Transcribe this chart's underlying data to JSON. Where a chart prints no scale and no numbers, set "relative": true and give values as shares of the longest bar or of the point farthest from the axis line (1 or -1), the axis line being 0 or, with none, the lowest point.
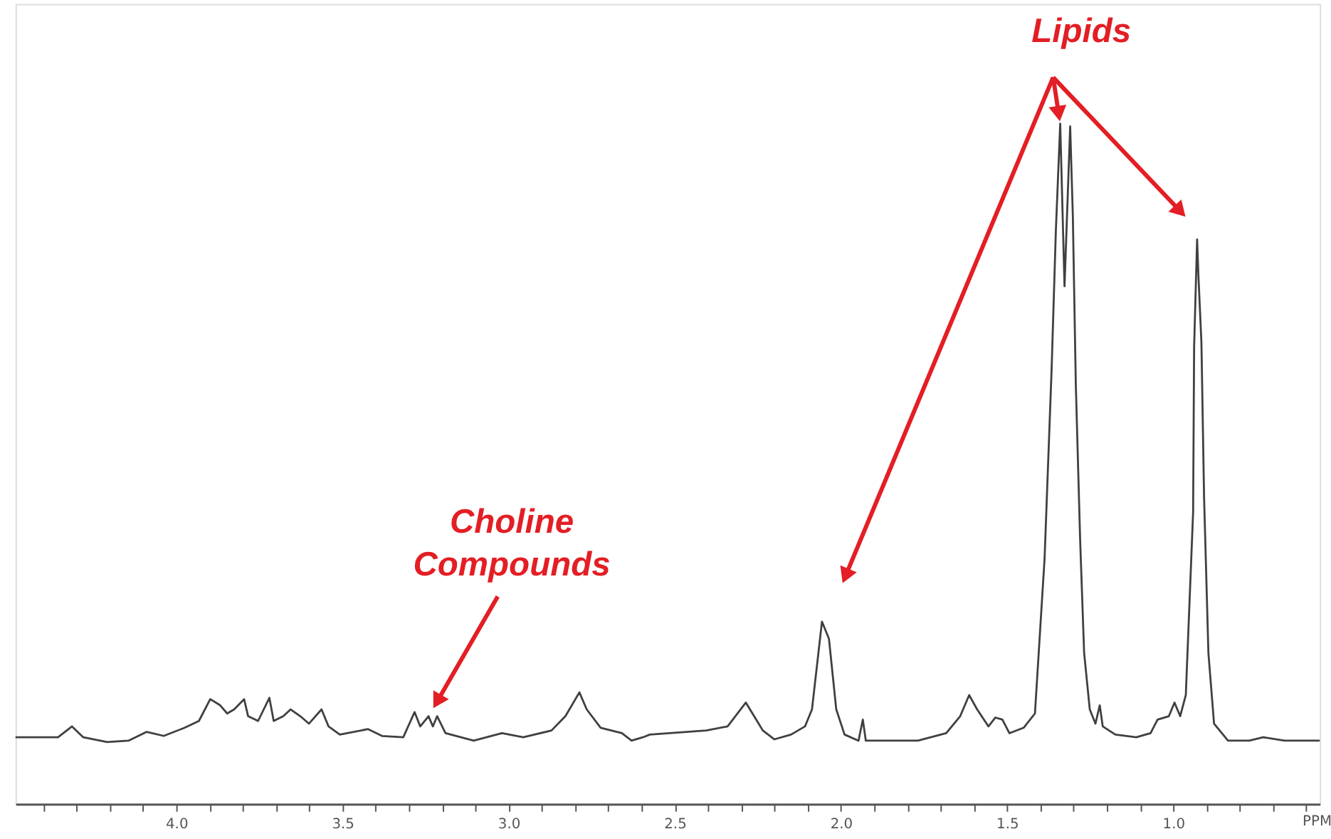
{
  "chart_data": {
    "type": "line",
    "relative": true,
    "xlabel": "PPM",
    "xlim": [
      4.484,
      0.559
    ],
    "xticks": [
      {
        "value": 4.4,
        "label": null
      },
      {
        "value": 4.3,
        "label": null
      },
      {
        "value": 4.2,
        "label": null
      },
      {
        "value": 4.1,
        "label": null
      },
      {
        "value": 4.0,
        "label": "4.0"
      },
      {
        "value": 3.9,
        "label": null
      },
      {
        "value": 3.8,
        "label": null
      },
      {
        "value": 3.7,
        "label": null
      },
      {
        "value": 3.6,
        "label": null
      },
      {
        "value": 3.5,
        "label": "3.5"
      },
      {
        "value": 3.4,
        "label": null
      },
      {
        "value": 3.3,
        "label": null
      },
      {
        "value": 3.2,
        "label": null
      },
      {
        "value": 3.1,
        "label": null
      },
      {
        "value": 3.0,
        "label": "3.0"
      },
      {
        "value": 2.9,
        "label": null
      },
      {
        "value": 2.8,
        "label": null
      },
      {
        "value": 2.7,
        "label": null
      },
      {
        "value": 2.6,
        "label": null
      },
      {
        "value": 2.5,
        "label": "2.5"
      },
      {
        "value": 2.4,
        "label": null
      },
      {
        "value": 2.3,
        "label": null
      },
      {
        "value": 2.2,
        "label": null
      },
      {
        "value": 2.1,
        "label": null
      },
      {
        "value": 2.0,
        "label": "2.0"
      },
      {
        "value": 1.9,
        "label": null
      },
      {
        "value": 1.8,
        "label": null
      },
      {
        "value": 1.7,
        "label": null
      },
      {
        "value": 1.6,
        "label": null
      },
      {
        "value": 1.5,
        "label": "1.5"
      },
      {
        "value": 1.4,
        "label": null
      },
      {
        "value": 1.3,
        "label": null
      },
      {
        "value": 1.2,
        "label": null
      },
      {
        "value": 1.1,
        "label": null
      },
      {
        "value": 1.0,
        "label": "1.0"
      },
      {
        "value": 0.9,
        "label": null
      },
      {
        "value": 0.8,
        "label": null
      },
      {
        "value": 0.7,
        "label": null
      },
      {
        "value": 0.6,
        "label": null
      }
    ],
    "grid": false,
    "marker": "none",
    "line_style": "solid",
    "series": [
      {
        "color": "#404040",
        "x": [
          4.484,
          4.356,
          4.314,
          4.28,
          4.208,
          4.144,
          4.089,
          4.038,
          3.975,
          3.932,
          3.898,
          3.868,
          3.847,
          3.826,
          3.796,
          3.784,
          3.754,
          3.72,
          3.707,
          3.678,
          3.656,
          3.627,
          3.601,
          3.563,
          3.542,
          3.508,
          3.423,
          3.381,
          3.317,
          3.283,
          3.266,
          3.241,
          3.228,
          3.215,
          3.19,
          3.105,
          3.02,
          2.956,
          2.871,
          2.829,
          2.787,
          2.765,
          2.723,
          2.659,
          2.63,
          2.596,
          2.575,
          2.405,
          2.341,
          2.286,
          2.235,
          2.2,
          2.15,
          2.108,
          2.087,
          2.057,
          2.036,
          2.014,
          1.989,
          1.947,
          1.934,
          1.925,
          1.768,
          1.683,
          1.641,
          1.614,
          1.59,
          1.556,
          1.535,
          1.514,
          1.493,
          1.45,
          1.416,
          1.387,
          1.366,
          1.353,
          1.34,
          1.327,
          1.31,
          1.302,
          1.293,
          1.28,
          1.268,
          1.251,
          1.234,
          1.221,
          1.212,
          1.174,
          1.111,
          1.068,
          1.047,
          1.013,
          0.996,
          0.979,
          0.962,
          0.94,
          0.937,
          0.928,
          0.924,
          0.915,
          0.907,
          0.894,
          0.877,
          0.835,
          0.771,
          0.729,
          0.665,
          0.559
        ],
        "values": [
          0.098,
          0.098,
          0.114,
          0.098,
          0.091,
          0.093,
          0.106,
          0.1,
          0.112,
          0.122,
          0.154,
          0.145,
          0.133,
          0.139,
          0.154,
          0.129,
          0.122,
          0.156,
          0.122,
          0.129,
          0.139,
          0.129,
          0.118,
          0.139,
          0.114,
          0.102,
          0.11,
          0.1,
          0.098,
          0.135,
          0.114,
          0.129,
          0.114,
          0.129,
          0.104,
          0.093,
          0.104,
          0.098,
          0.108,
          0.129,
          0.164,
          0.139,
          0.112,
          0.104,
          0.093,
          0.098,
          0.102,
          0.108,
          0.114,
          0.149,
          0.108,
          0.095,
          0.102,
          0.114,
          0.139,
          0.268,
          0.243,
          0.139,
          0.102,
          0.093,
          0.124,
          0.093,
          0.093,
          0.104,
          0.129,
          0.16,
          0.139,
          0.114,
          0.127,
          0.124,
          0.104,
          0.112,
          0.133,
          0.361,
          0.637,
          0.844,
          1.0,
          0.761,
          0.996,
          0.865,
          0.616,
          0.388,
          0.222,
          0.139,
          0.118,
          0.145,
          0.114,
          0.102,
          0.098,
          0.104,
          0.124,
          0.129,
          0.149,
          0.129,
          0.16,
          0.429,
          0.672,
          0.83,
          0.776,
          0.678,
          0.45,
          0.222,
          0.118,
          0.093,
          0.093,
          0.098,
          0.093,
          0.093
        ]
      }
    ],
    "annotations": [
      {
        "text": "Lipids",
        "x": 1.34,
        "y": 1.0
      },
      "Choline\nCompounds"
    ]
  }
}
